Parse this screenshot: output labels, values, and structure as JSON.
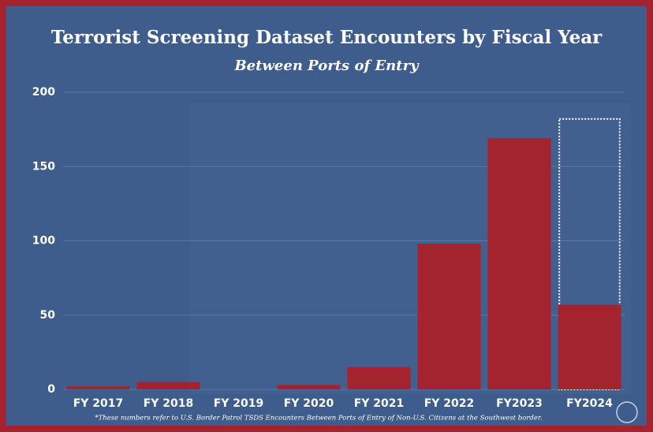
{
  "chart_data": {
    "type": "bar",
    "title": "Terrorist Screening Dataset Encounters by Fiscal Year",
    "subtitle": "Between Ports of Entry",
    "categories": [
      "FY 2017",
      "FY 2018",
      "FY 2019",
      "FY 2020",
      "FY 2021",
      "FY 2022",
      "FY2023",
      "FY2024"
    ],
    "values": [
      2,
      5,
      0,
      3,
      15,
      98,
      169,
      57
    ],
    "projection_values": [
      null,
      null,
      null,
      null,
      null,
      null,
      null,
      182
    ],
    "color": "#a3232f",
    "ylim": [
      0,
      200
    ],
    "yticks": [
      0,
      50,
      100,
      150,
      200
    ],
    "grid": true,
    "footnote": "*These numbers refer to U.S. Border Patrol TSDS Encounters Between Ports of Entry of Non-U.S. Citizens at the Southwest border."
  }
}
